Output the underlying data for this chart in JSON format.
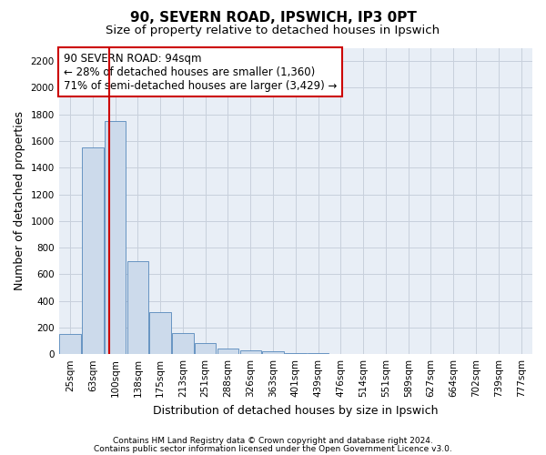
{
  "title1": "90, SEVERN ROAD, IPSWICH, IP3 0PT",
  "title2": "Size of property relative to detached houses in Ipswich",
  "xlabel": "Distribution of detached houses by size in Ipswich",
  "ylabel": "Number of detached properties",
  "categories": [
    "25sqm",
    "63sqm",
    "100sqm",
    "138sqm",
    "175sqm",
    "213sqm",
    "251sqm",
    "288sqm",
    "326sqm",
    "363sqm",
    "401sqm",
    "439sqm",
    "476sqm",
    "514sqm",
    "551sqm",
    "589sqm",
    "627sqm",
    "664sqm",
    "702sqm",
    "739sqm",
    "777sqm"
  ],
  "values": [
    150,
    1550,
    1750,
    700,
    315,
    160,
    80,
    42,
    26,
    20,
    10,
    5,
    3,
    2,
    1,
    1,
    0,
    0,
    0,
    0,
    0
  ],
  "bar_color": "#ccdaeb",
  "bar_edge_color": "#5588bb",
  "grid_color": "#c8d0dc",
  "background_color": "#e8eef6",
  "annotation_box_color": "#cc0000",
  "annotation_text": "90 SEVERN ROAD: 94sqm\n← 28% of detached houses are smaller (1,360)\n71% of semi-detached houses are larger (3,429) →",
  "ref_line_x": 1.72,
  "ref_line_color": "#cc0000",
  "ylim": [
    0,
    2300
  ],
  "yticks": [
    0,
    200,
    400,
    600,
    800,
    1000,
    1200,
    1400,
    1600,
    1800,
    2000,
    2200
  ],
  "footer1": "Contains HM Land Registry data © Crown copyright and database right 2024.",
  "footer2": "Contains public sector information licensed under the Open Government Licence v3.0.",
  "title1_fontsize": 11,
  "title2_fontsize": 9.5,
  "tick_fontsize": 7.5,
  "xlabel_fontsize": 9,
  "ylabel_fontsize": 9,
  "annotation_fontsize": 8.5,
  "footer_fontsize": 6.5
}
